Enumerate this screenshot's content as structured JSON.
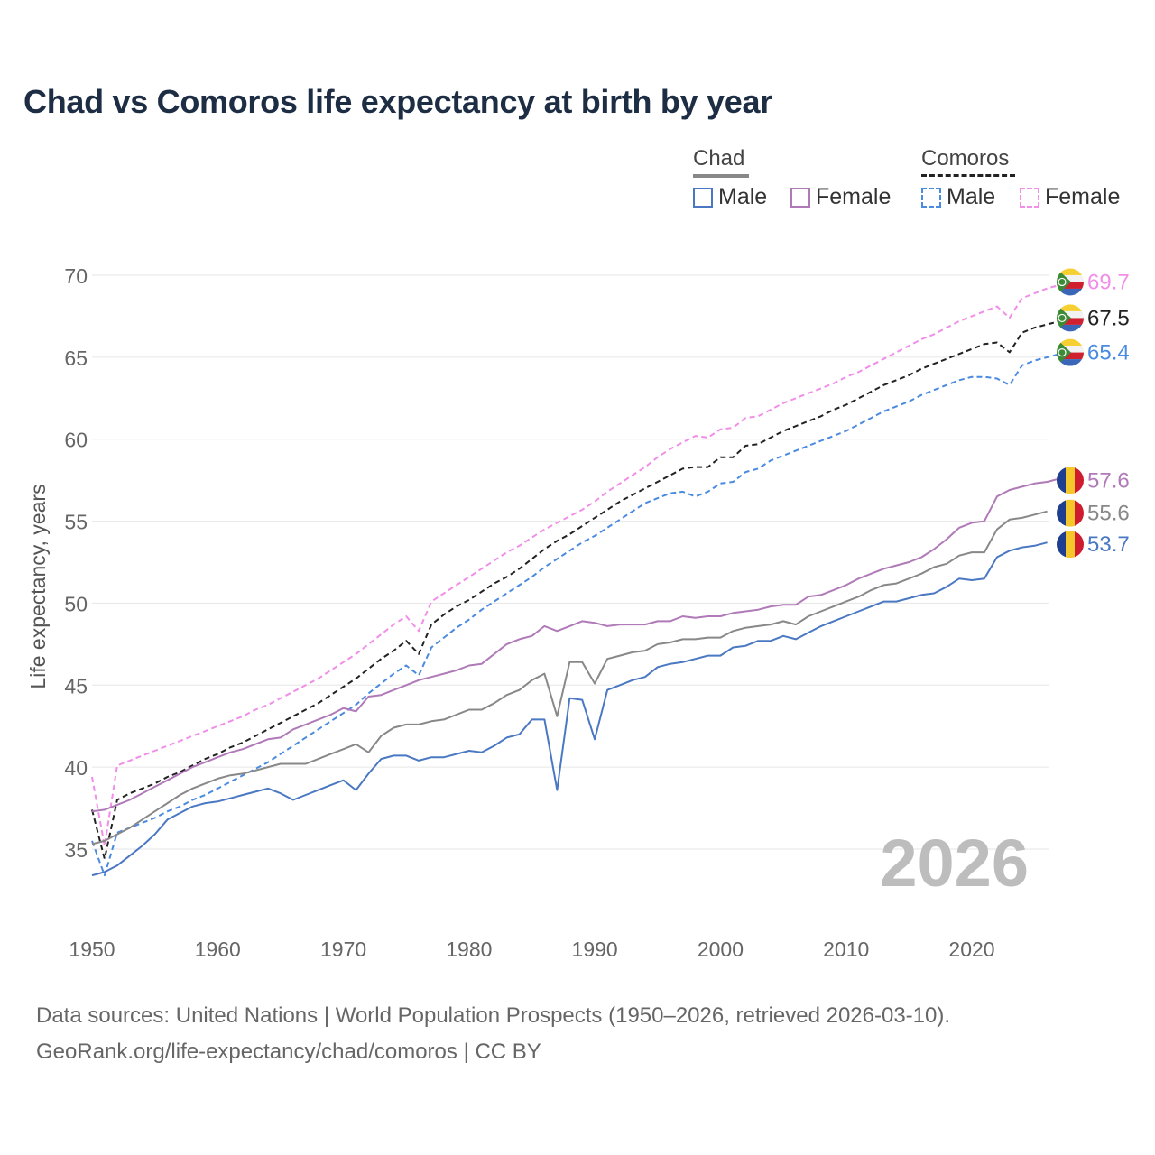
{
  "title": "Chad vs Comoros life expectancy at birth by year",
  "legend": {
    "groups": [
      {
        "name": "Chad",
        "color": "#888888",
        "dash": false
      },
      {
        "name": "Comoros",
        "color": "#222222",
        "dash": true
      }
    ],
    "items": [
      {
        "label": "Male",
        "color": "#4a78c2",
        "dash": false
      },
      {
        "label": "Female",
        "color": "#b07ab8",
        "dash": false
      },
      {
        "label": "Male",
        "color": "#4a8ae0",
        "dash": true
      },
      {
        "label": "Female",
        "color": "#f08ee8",
        "dash": true
      }
    ]
  },
  "year_label": "2026",
  "footer": {
    "line1": "Data sources: United Nations | World Population Prospects (1950–2026, retrieved 2026-03-10).",
    "line2": "GeoRank.org/life-expectancy/chad/comoros | CC BY"
  },
  "chart_data": {
    "type": "line",
    "title": "Chad vs Comoros life expectancy at birth by year",
    "xlabel": "",
    "ylabel": "Life expectancy, years",
    "xlim": [
      1950,
      2026
    ],
    "ylim": [
      32,
      72
    ],
    "xticks": [
      1950,
      1960,
      1970,
      1980,
      1990,
      2000,
      2010,
      2020
    ],
    "yticks": [
      35,
      40,
      45,
      50,
      55,
      60,
      65,
      70
    ],
    "grid": true,
    "x_start": 1950,
    "series": [
      {
        "name": "Comoros Female",
        "country": "Comoros",
        "sex": "Female",
        "color": "#f08ee8",
        "dash": true,
        "end_label": "69.7",
        "values": [
          39.4,
          35.2,
          40.1,
          40.4,
          40.7,
          41.0,
          41.3,
          41.6,
          41.9,
          42.2,
          42.5,
          42.8,
          43.1,
          43.5,
          43.8,
          44.2,
          44.6,
          45.0,
          45.4,
          45.9,
          46.4,
          46.9,
          47.5,
          48.1,
          48.7,
          49.2,
          48.3,
          50.1,
          50.6,
          51.1,
          51.6,
          52.1,
          52.6,
          53.1,
          53.5,
          54.0,
          54.5,
          54.9,
          55.3,
          55.7,
          56.2,
          56.8,
          57.3,
          57.8,
          58.3,
          58.9,
          59.4,
          59.8,
          60.2,
          60.1,
          60.6,
          60.7,
          61.3,
          61.4,
          61.8,
          62.2,
          62.5,
          62.8,
          63.1,
          63.4,
          63.8,
          64.1,
          64.5,
          64.9,
          65.3,
          65.7,
          66.1,
          66.4,
          66.8,
          67.2,
          67.5,
          67.8,
          68.1,
          67.4,
          68.6,
          68.9,
          69.2,
          69.4,
          69.7
        ]
      },
      {
        "name": "Comoros Total",
        "country": "Comoros",
        "sex": "Total",
        "color": "#222222",
        "dash": true,
        "end_label": "67.5",
        "values": [
          37.4,
          34.4,
          38.0,
          38.4,
          38.7,
          39.0,
          39.4,
          39.7,
          40.1,
          40.5,
          40.8,
          41.2,
          41.5,
          41.9,
          42.3,
          42.7,
          43.1,
          43.5,
          43.9,
          44.4,
          44.9,
          45.4,
          46.0,
          46.6,
          47.1,
          47.7,
          46.9,
          48.7,
          49.3,
          49.8,
          50.2,
          50.7,
          51.2,
          51.6,
          52.1,
          52.7,
          53.3,
          53.8,
          54.2,
          54.7,
          55.2,
          55.7,
          56.2,
          56.6,
          57.0,
          57.4,
          57.8,
          58.2,
          58.3,
          58.3,
          58.9,
          58.9,
          59.6,
          59.7,
          60.1,
          60.5,
          60.8,
          61.1,
          61.4,
          61.8,
          62.1,
          62.5,
          62.9,
          63.3,
          63.6,
          63.9,
          64.3,
          64.6,
          64.9,
          65.2,
          65.5,
          65.8,
          65.9,
          65.3,
          66.5,
          66.8,
          67.0,
          67.2,
          67.5
        ]
      },
      {
        "name": "Comoros Male",
        "country": "Comoros",
        "sex": "Male",
        "color": "#4a8ae0",
        "dash": true,
        "end_label": "65.4",
        "values": [
          35.5,
          33.4,
          36.0,
          36.3,
          36.6,
          36.9,
          37.3,
          37.6,
          38.0,
          38.3,
          38.7,
          39.1,
          39.5,
          39.9,
          40.3,
          40.8,
          41.3,
          41.8,
          42.3,
          42.8,
          43.3,
          43.8,
          44.5,
          45.1,
          45.7,
          46.2,
          45.6,
          47.3,
          47.9,
          48.5,
          49.0,
          49.6,
          50.1,
          50.6,
          51.1,
          51.6,
          52.2,
          52.7,
          53.2,
          53.7,
          54.1,
          54.6,
          55.1,
          55.6,
          56.1,
          56.4,
          56.7,
          56.8,
          56.5,
          56.8,
          57.3,
          57.4,
          58.0,
          58.2,
          58.7,
          59.0,
          59.3,
          59.6,
          59.9,
          60.2,
          60.5,
          60.9,
          61.3,
          61.7,
          62.0,
          62.3,
          62.7,
          63.0,
          63.3,
          63.6,
          63.8,
          63.8,
          63.7,
          63.3,
          64.5,
          64.8,
          65.0,
          65.2,
          65.4
        ]
      },
      {
        "name": "Chad Female",
        "country": "Chad",
        "sex": "Female",
        "color": "#b07ab8",
        "dash": false,
        "end_label": "57.6",
        "values": [
          37.3,
          37.4,
          37.7,
          38.0,
          38.4,
          38.8,
          39.2,
          39.6,
          40.0,
          40.3,
          40.6,
          40.9,
          41.1,
          41.4,
          41.7,
          41.8,
          42.3,
          42.6,
          42.9,
          43.2,
          43.6,
          43.4,
          44.3,
          44.4,
          44.7,
          45.0,
          45.3,
          45.5,
          45.7,
          45.9,
          46.2,
          46.3,
          46.9,
          47.5,
          47.8,
          48.0,
          48.6,
          48.3,
          48.6,
          48.9,
          48.8,
          48.6,
          48.7,
          48.7,
          48.7,
          48.9,
          48.9,
          49.2,
          49.1,
          49.2,
          49.2,
          49.4,
          49.5,
          49.6,
          49.8,
          49.9,
          49.9,
          50.4,
          50.5,
          50.8,
          51.1,
          51.5,
          51.8,
          52.1,
          52.3,
          52.5,
          52.8,
          53.3,
          53.9,
          54.6,
          54.9,
          55.0,
          56.5,
          56.9,
          57.1,
          57.3,
          57.4,
          57.6
        ]
      },
      {
        "name": "Chad Total",
        "country": "Chad",
        "sex": "Total",
        "color": "#888888",
        "dash": false,
        "end_label": "55.6",
        "values": [
          35.3,
          35.5,
          35.9,
          36.3,
          36.8,
          37.3,
          37.8,
          38.3,
          38.7,
          39.0,
          39.3,
          39.5,
          39.6,
          39.8,
          40.0,
          40.2,
          40.2,
          40.2,
          40.5,
          40.8,
          41.1,
          41.4,
          40.9,
          41.9,
          42.4,
          42.6,
          42.6,
          42.8,
          42.9,
          43.2,
          43.5,
          43.5,
          43.9,
          44.4,
          44.7,
          45.3,
          45.7,
          43.1,
          46.4,
          46.4,
          45.1,
          46.6,
          46.8,
          47.0,
          47.1,
          47.5,
          47.6,
          47.8,
          47.8,
          47.9,
          47.9,
          48.3,
          48.5,
          48.6,
          48.7,
          48.9,
          48.7,
          49.2,
          49.5,
          49.8,
          50.1,
          50.4,
          50.8,
          51.1,
          51.2,
          51.5,
          51.8,
          52.2,
          52.4,
          52.9,
          53.1,
          53.1,
          54.5,
          55.1,
          55.2,
          55.4,
          55.6
        ]
      },
      {
        "name": "Chad Male",
        "country": "Chad",
        "sex": "Male",
        "color": "#4a78c2",
        "dash": false,
        "end_label": "53.7",
        "values": [
          33.4,
          33.6,
          34.0,
          34.6,
          35.2,
          35.9,
          36.8,
          37.2,
          37.6,
          37.8,
          37.9,
          38.1,
          38.3,
          38.5,
          38.7,
          38.4,
          38.0,
          38.3,
          38.6,
          38.9,
          39.2,
          38.6,
          39.6,
          40.5,
          40.7,
          40.7,
          40.4,
          40.6,
          40.6,
          40.8,
          41.0,
          40.9,
          41.3,
          41.8,
          42.0,
          42.9,
          42.9,
          38.6,
          44.2,
          44.1,
          41.7,
          44.7,
          45.0,
          45.3,
          45.5,
          46.1,
          46.3,
          46.4,
          46.6,
          46.8,
          46.8,
          47.3,
          47.4,
          47.7,
          47.7,
          48.0,
          47.8,
          48.2,
          48.6,
          48.9,
          49.2,
          49.5,
          49.8,
          50.1,
          50.1,
          50.3,
          50.5,
          50.6,
          51.0,
          51.5,
          51.4,
          51.5,
          52.8,
          53.2,
          53.4,
          53.5,
          53.7
        ]
      }
    ]
  }
}
